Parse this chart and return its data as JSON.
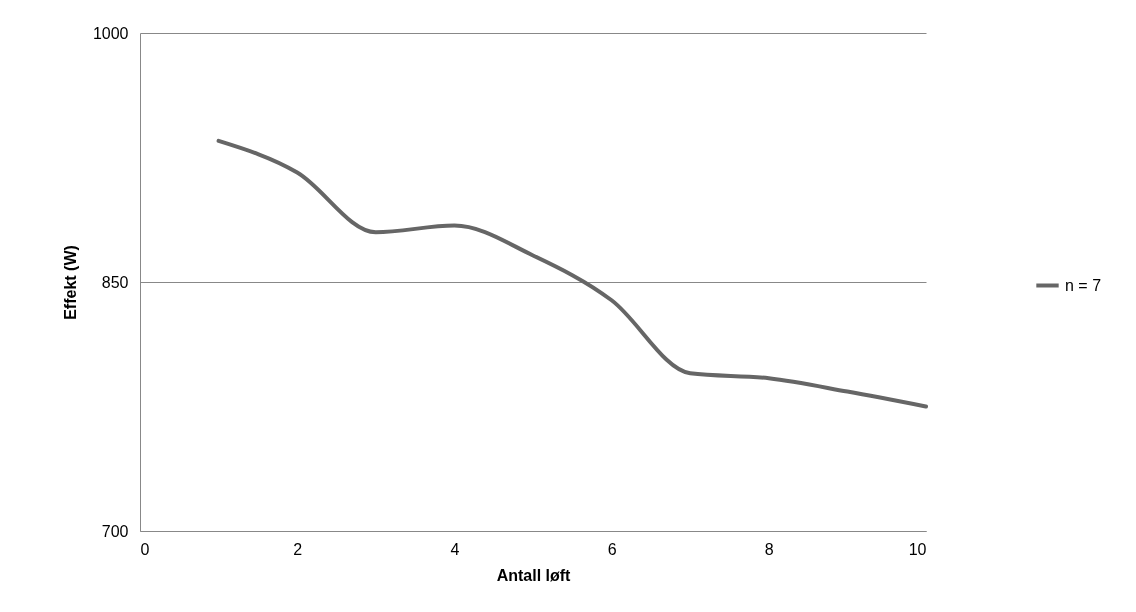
{
  "chart_data": {
    "type": "line",
    "xlabel": "Antall løft",
    "ylabel": "Effekt (W)",
    "x": [
      1,
      2,
      3,
      4,
      5,
      6,
      7,
      8,
      9,
      10
    ],
    "series": [
      {
        "name": "n = 7",
        "color": "#666666",
        "values": [
          935,
          916,
          880,
          884,
          866,
          839,
          795,
          792,
          784,
          775
        ]
      }
    ],
    "xlim": [
      0,
      10
    ],
    "xticks": [
      0,
      2,
      4,
      6,
      8,
      10
    ],
    "ylim": [
      700,
      1000
    ],
    "yticks": [
      700,
      850,
      1000
    ],
    "grid": "y",
    "legend": "right"
  }
}
